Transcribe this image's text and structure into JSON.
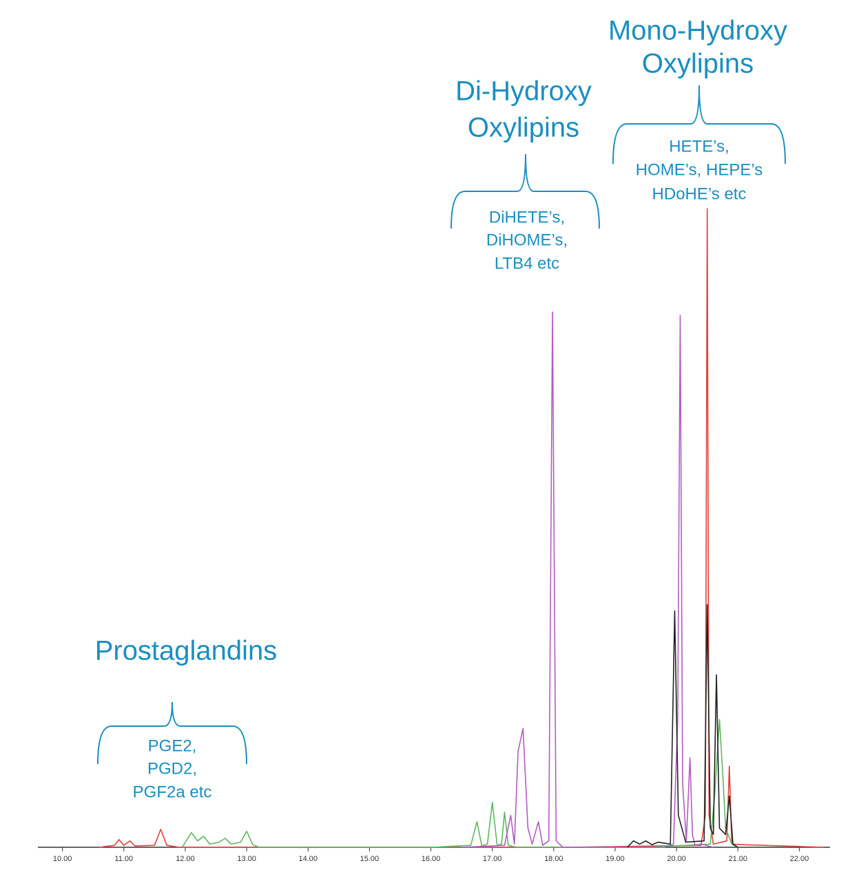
{
  "chart_data": {
    "type": "line",
    "xlim": [
      9.6,
      22.5
    ],
    "ylim": [
      0,
      100
    ],
    "xticks": [
      {
        "value": 10,
        "label": "10.00"
      },
      {
        "value": 11,
        "label": "11.00"
      },
      {
        "value": 12,
        "label": "12.00"
      },
      {
        "value": 13,
        "label": "13.00"
      },
      {
        "value": 14,
        "label": "14.00"
      },
      {
        "value": 15,
        "label": "15.00"
      },
      {
        "value": 16,
        "label": "16.00"
      },
      {
        "value": 17,
        "label": "17.00"
      },
      {
        "value": 18,
        "label": "18.00"
      },
      {
        "value": 19,
        "label": "19.00"
      },
      {
        "value": 20,
        "label": "20.00"
      },
      {
        "value": 21,
        "label": "21.00"
      },
      {
        "value": 22,
        "label": "22.00"
      }
    ],
    "series": [
      {
        "color": "#e0403a",
        "x": [
          10.6,
          10.85,
          10.92,
          11.0,
          11.1,
          11.18,
          11.5,
          11.6,
          11.7,
          11.9,
          18.2,
          20.4,
          20.47,
          20.5,
          20.53,
          20.6,
          20.82,
          20.86,
          20.9,
          21.1,
          22.4
        ],
        "values": [
          0,
          0.3,
          1.2,
          0.3,
          1,
          0.2,
          0.3,
          2.8,
          0.3,
          0,
          0,
          0.3,
          5,
          100,
          5,
          0.5,
          1,
          12.7,
          0.5,
          0.4,
          0
        ]
      },
      {
        "color": "#5cb85c",
        "x": [
          11.95,
          12.1,
          12.2,
          12.3,
          12.4,
          12.55,
          12.65,
          12.75,
          12.9,
          13.0,
          13.1,
          13.2,
          16.0,
          16.65,
          16.75,
          16.83,
          16.92,
          17.0,
          17.08,
          17.15,
          17.2,
          17.26,
          17.4,
          19.5,
          20.55,
          20.62,
          20.7,
          20.75,
          20.8,
          20.9,
          21.0
        ],
        "values": [
          0,
          2.3,
          1.0,
          1.7,
          0.5,
          0.8,
          1.4,
          0.5,
          0.8,
          2.5,
          0.4,
          0,
          0,
          0.3,
          4,
          0.2,
          0.5,
          7,
          0.3,
          0.5,
          5.5,
          0.3,
          0,
          0,
          0.5,
          8,
          20,
          12,
          3,
          0.5,
          0
        ]
      },
      {
        "color": "#b35cc2",
        "x": [
          16.5,
          17.2,
          17.3,
          17.36,
          17.42,
          17.5,
          17.58,
          17.65,
          17.75,
          17.82,
          17.92,
          17.98,
          18.04,
          18.15,
          19.8,
          19.95,
          20.02,
          20.06,
          20.1,
          20.16,
          20.22,
          20.26,
          20.3,
          20.4,
          20.6
        ],
        "values": [
          0,
          0.3,
          5,
          0.5,
          15,
          18.6,
          3,
          0.5,
          4,
          0.3,
          1,
          83.8,
          1,
          0,
          0,
          0.5,
          20,
          83.3,
          10,
          1,
          14,
          2,
          0.3,
          0.5,
          0
        ]
      },
      {
        "color": "#222222",
        "x": [
          19.2,
          19.3,
          19.4,
          19.5,
          19.6,
          19.7,
          19.9,
          19.97,
          20.03,
          20.15,
          20.45,
          20.5,
          20.55,
          20.6,
          20.65,
          20.7,
          20.8,
          20.86,
          20.92,
          21.0
        ],
        "values": [
          0,
          1,
          0.5,
          1,
          0.4,
          0.8,
          0.5,
          37,
          5,
          0.8,
          1,
          38,
          3,
          2,
          27,
          3,
          2,
          8,
          0.5,
          0
        ]
      }
    ],
    "annotations": {
      "prostaglandins": {
        "title": [
          "Prostaglandins"
        ],
        "items": [
          "PGE2,",
          "PGD2,",
          "PGF2a etc"
        ]
      },
      "di_hydroxy": {
        "title": [
          "Di-Hydroxy",
          "Oxylipins"
        ],
        "items": [
          "DiHETE’s,",
          "DiHOME’s,",
          "LTB4 etc"
        ]
      },
      "mono_hydroxy": {
        "title": [
          "Mono-Hydroxy",
          "Oxylipins"
        ],
        "items": [
          "HETE’s,",
          "HOME’s, HEPE’s",
          "HDoHE’s etc"
        ]
      }
    }
  }
}
